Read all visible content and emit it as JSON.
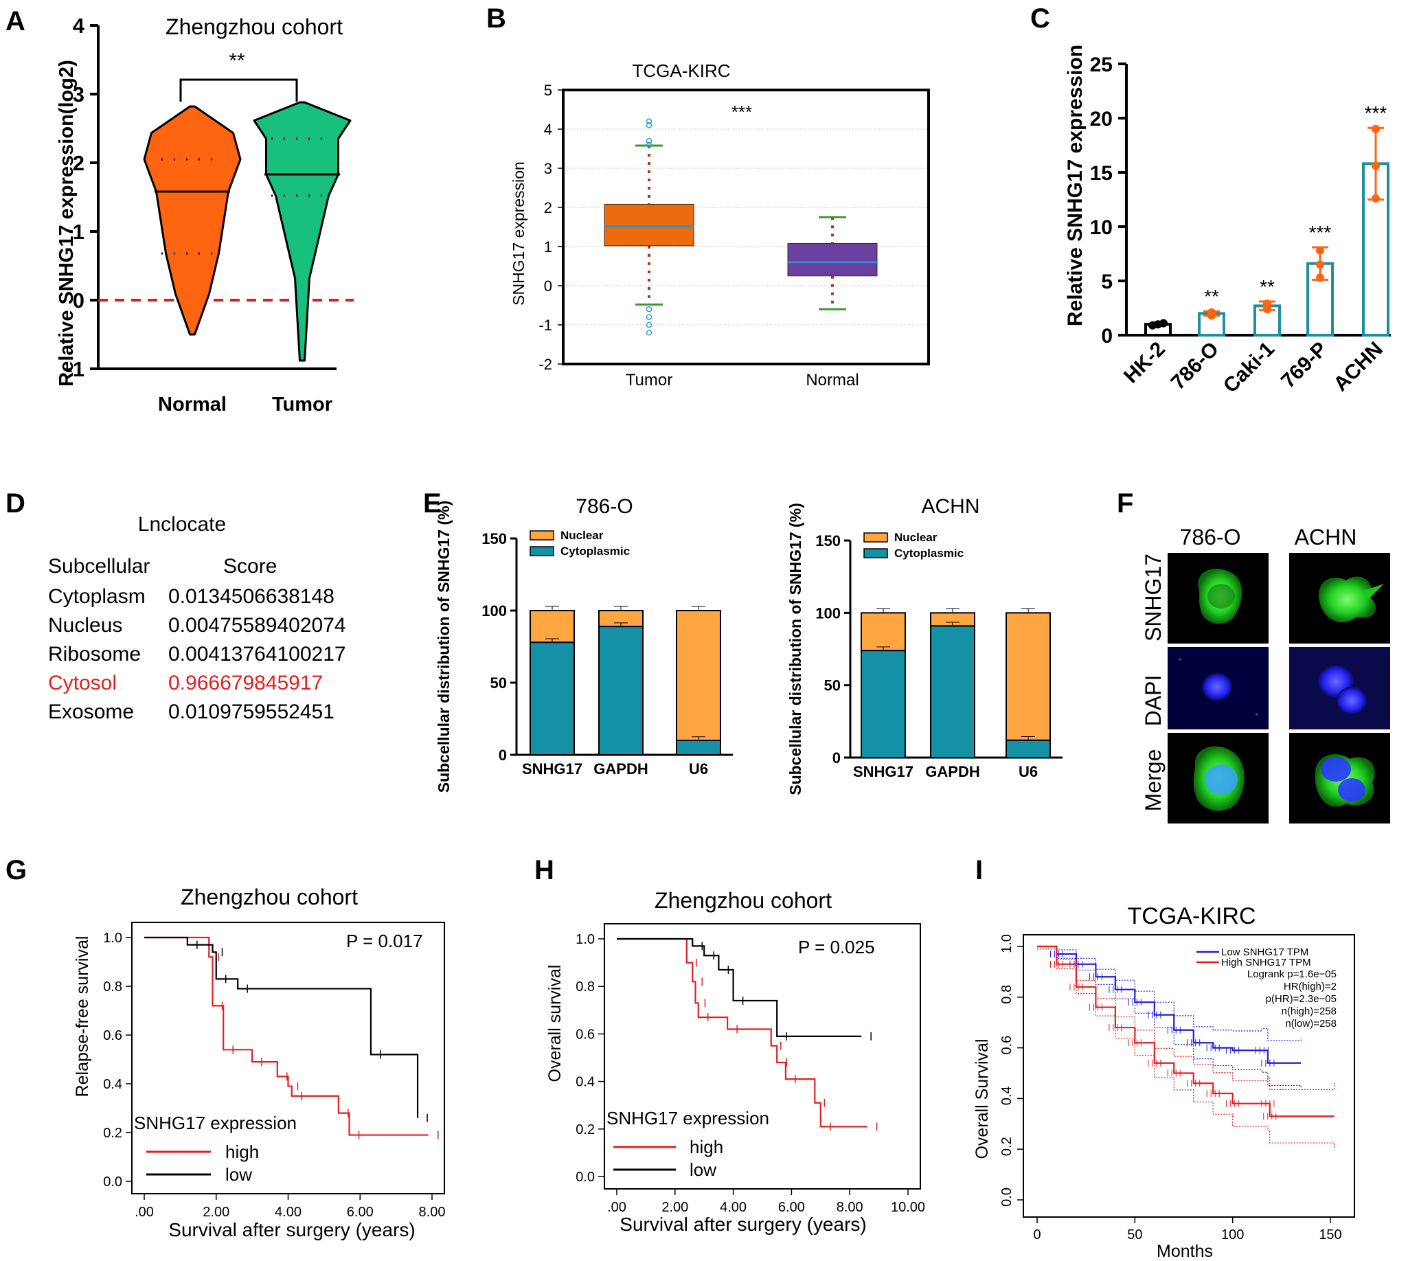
{
  "panel_labels": [
    "A",
    "B",
    "C",
    "D",
    "E",
    "F",
    "G",
    "H",
    "I"
  ],
  "colors": {
    "orange": "#ff6410",
    "green": "#17c07c",
    "teal": "#1f8ea1",
    "cyan_bar": "#1591a5",
    "light_orange": "#ffa640",
    "box_orange": "#ec6b0f",
    "box_purple": "#6b3fa0",
    "red": "#e41f1f",
    "blue": "#1f1fdd",
    "dashed_red": "#e01b1b",
    "tick_green": "#3a9a2a",
    "whisker": "#a43a1f",
    "fluor_green": "#22dd22",
    "fluor_blue": "#2222ee"
  },
  "chart_data": [
    {
      "id": "A",
      "type": "violin",
      "title": "Zhengzhou cohort",
      "ylabel": "Relative SNHG17 expression(log2)",
      "ylim": [
        -1,
        4
      ],
      "yticks": [
        -1,
        0,
        1,
        2,
        3,
        4
      ],
      "categories": [
        "Normal",
        "Tumor"
      ],
      "series": [
        {
          "name": "Normal",
          "min": -0.5,
          "q1": 0.68,
          "median": 1.58,
          "q3": 2.05,
          "max": 2.82
        },
        {
          "name": "Tumor",
          "min": -0.88,
          "q1": 1.52,
          "median": 1.83,
          "q3": 2.35,
          "max": 2.88
        }
      ],
      "reference_line": 0,
      "significance": "**"
    },
    {
      "id": "B",
      "type": "box",
      "title": "TCGA-KIRC",
      "ylabel": "SNHG17 expression",
      "ylim": [
        -2,
        5
      ],
      "yticks": [
        -2,
        -1,
        0,
        1,
        2,
        3,
        4,
        5
      ],
      "categories": [
        "Tumor",
        "Normal"
      ],
      "series": [
        {
          "name": "Tumor",
          "whisker_low": -0.48,
          "q1": 1.02,
          "median": 1.52,
          "q3": 2.08,
          "whisker_high": 3.58,
          "outliers": [
            4.2,
            4.1,
            3.7,
            3.6,
            -0.6,
            -0.8,
            -1.0,
            -1.2
          ]
        },
        {
          "name": "Normal",
          "whisker_low": -0.6,
          "q1": 0.25,
          "median": 0.6,
          "q3": 1.08,
          "whisker_high": 1.75,
          "outliers": []
        }
      ],
      "significance": "***"
    },
    {
      "id": "C",
      "type": "bar",
      "ylabel": "Relative SNHG17 expression",
      "ylim": [
        0,
        25
      ],
      "yticks": [
        0,
        5,
        10,
        15,
        20,
        25
      ],
      "categories": [
        "HK-2",
        "786-O",
        "Caki-1",
        "769-P",
        "ACHN"
      ],
      "values": [
        1.0,
        2.0,
        2.7,
        6.6,
        15.8
      ],
      "errors": [
        0.1,
        0.2,
        0.4,
        1.5,
        3.3
      ],
      "points": [
        [
          0.9,
          1.0,
          1.1
        ],
        [
          1.8,
          2.0,
          2.1
        ],
        [
          2.4,
          2.7,
          2.9
        ],
        [
          5.3,
          6.5,
          7.8
        ],
        [
          12.6,
          15.6,
          19.0
        ]
      ],
      "significance": [
        "",
        "**",
        "**",
        "***",
        "***"
      ]
    },
    {
      "id": "E1",
      "type": "bar",
      "title": "786-O",
      "ylabel": "Subcellular distribution of SNHG17 (%)",
      "ylim": [
        0,
        150
      ],
      "yticks": [
        0,
        50,
        100,
        150
      ],
      "categories": [
        "SNHG17",
        "GAPDH",
        "U6"
      ],
      "series": [
        {
          "name": "Nuclear",
          "values": [
            22,
            11,
            90
          ]
        },
        {
          "name": "Cytoplasmic",
          "values": [
            78,
            89,
            10
          ]
        }
      ]
    },
    {
      "id": "E2",
      "type": "bar",
      "title": "ACHN",
      "ylabel": "Subcellular distribution of SNHG17 (%)",
      "ylim": [
        0,
        150
      ],
      "yticks": [
        0,
        50,
        100,
        150
      ],
      "categories": [
        "SNHG17",
        "GAPDH",
        "U6"
      ],
      "series": [
        {
          "name": "Nuclear",
          "values": [
            26,
            9,
            88
          ]
        },
        {
          "name": "Cytoplasmic",
          "values": [
            74,
            91,
            12
          ]
        }
      ]
    },
    {
      "id": "G",
      "type": "line",
      "title": "Zhengzhou cohort",
      "xlabel": "Survival after surgery (years)",
      "ylabel": "Relapse-free survival",
      "xlim": [
        0,
        8
      ],
      "ylim": [
        0,
        1
      ],
      "xticks": [
        ".00",
        "2.00",
        "4.00",
        "6.00",
        "8.00"
      ],
      "yticks": [
        "0.0",
        "0.2",
        "0.4",
        "0.6",
        "0.8",
        "1.0"
      ],
      "pvalue": "P = 0.017",
      "legend_title": "SNHG17 expression",
      "series": [
        {
          "name": "high",
          "steps": [
            [
              0,
              1
            ],
            [
              1.8,
              0.92
            ],
            [
              1.9,
              0.72
            ],
            [
              2.2,
              0.54
            ],
            [
              3.0,
              0.49
            ],
            [
              3.7,
              0.43
            ],
            [
              4.0,
              0.39
            ],
            [
              4.1,
              0.35
            ],
            [
              5.4,
              0.28
            ],
            [
              5.7,
              0.19
            ],
            [
              7.9,
              0.19
            ]
          ]
        },
        {
          "name": "low",
          "steps": [
            [
              0,
              1
            ],
            [
              1.2,
              0.97
            ],
            [
              1.9,
              0.94
            ],
            [
              2.0,
              0.83
            ],
            [
              2.6,
              0.79
            ],
            [
              6.3,
              0.52
            ],
            [
              7.6,
              0.26
            ]
          ]
        }
      ]
    },
    {
      "id": "H",
      "type": "line",
      "title": "Zhengzhou cohort",
      "xlabel": "Survival after surgery (years)",
      "ylabel": "Overall survival",
      "xlim": [
        0,
        10
      ],
      "ylim": [
        0,
        1
      ],
      "xticks": [
        ".00",
        "2.00",
        "4.00",
        "6.00",
        "8.00",
        "10.00"
      ],
      "yticks": [
        "0.0",
        "0.2",
        "0.4",
        "0.6",
        "0.8",
        "1.0"
      ],
      "pvalue": "P = 0.025",
      "legend_title": "SNHG17 expression",
      "series": [
        {
          "name": "high",
          "steps": [
            [
              0,
              1
            ],
            [
              2.4,
              0.9
            ],
            [
              2.6,
              0.82
            ],
            [
              2.7,
              0.73
            ],
            [
              2.8,
              0.67
            ],
            [
              3.8,
              0.62
            ],
            [
              5.3,
              0.55
            ],
            [
              5.5,
              0.48
            ],
            [
              5.8,
              0.41
            ],
            [
              6.8,
              0.31
            ],
            [
              7.0,
              0.21
            ],
            [
              8.6,
              0.21
            ]
          ]
        },
        {
          "name": "low",
          "steps": [
            [
              0,
              1
            ],
            [
              2.6,
              0.97
            ],
            [
              3.0,
              0.93
            ],
            [
              3.5,
              0.87
            ],
            [
              4.0,
              0.74
            ],
            [
              5.5,
              0.59
            ],
            [
              8.4,
              0.59
            ]
          ]
        }
      ]
    },
    {
      "id": "I",
      "type": "line",
      "title": "TCGA-KIRC",
      "xlabel": "Months",
      "ylabel": "Overall Survival",
      "xlim": [
        0,
        150
      ],
      "ylim": [
        0,
        1
      ],
      "xticks": [
        "0",
        "50",
        "100",
        "150"
      ],
      "yticks": [
        "0.0",
        "0.2",
        "0.4",
        "0.6",
        "0.8",
        "1.0"
      ],
      "legend": [
        "Low SNHG17 TPM",
        "High SNHG17 TPM"
      ],
      "stats": [
        "Logrank p=1.6e−05",
        "HR(high)=2",
        "p(HR)=2.3e−05",
        "n(high)=258",
        "n(low)=258"
      ],
      "series": [
        {
          "name": "Low SNHG17 TPM",
          "points": [
            [
              0,
              1
            ],
            [
              10,
              0.97
            ],
            [
              20,
              0.93
            ],
            [
              30,
              0.88
            ],
            [
              40,
              0.83
            ],
            [
              50,
              0.78
            ],
            [
              60,
              0.73
            ],
            [
              70,
              0.67
            ],
            [
              80,
              0.62
            ],
            [
              90,
              0.6
            ],
            [
              100,
              0.59
            ],
            [
              115,
              0.59
            ],
            [
              118,
              0.54
            ],
            [
              135,
              0.54
            ]
          ]
        },
        {
          "name": "High SNHG17 TPM",
          "points": [
            [
              0,
              1
            ],
            [
              10,
              0.93
            ],
            [
              20,
              0.84
            ],
            [
              30,
              0.76
            ],
            [
              40,
              0.68
            ],
            [
              50,
              0.62
            ],
            [
              60,
              0.54
            ],
            [
              70,
              0.5
            ],
            [
              80,
              0.46
            ],
            [
              90,
              0.42
            ],
            [
              100,
              0.38
            ],
            [
              118,
              0.38
            ],
            [
              119,
              0.33
            ],
            [
              152,
              0.33
            ]
          ]
        }
      ]
    }
  ],
  "lnclocate": {
    "title": "Lnclocate",
    "header": [
      "Subcellular",
      "Score"
    ],
    "rows": [
      {
        "location": "Cytoplasm",
        "score": "0.0134506638148",
        "highlight": false
      },
      {
        "location": "Nucleus",
        "score": "0.00475589402074",
        "highlight": false
      },
      {
        "location": "Ribosome",
        "score": "0.00413764100217",
        "highlight": false
      },
      {
        "location": "Cytosol",
        "score": "0.966679845917",
        "highlight": true
      },
      {
        "location": "Exosome",
        "score": "0.0109759552451",
        "highlight": false
      }
    ]
  },
  "fish": {
    "columns": [
      "786-O",
      "ACHN"
    ],
    "rows": [
      "SNHG17",
      "DAPI",
      "Merge"
    ]
  }
}
